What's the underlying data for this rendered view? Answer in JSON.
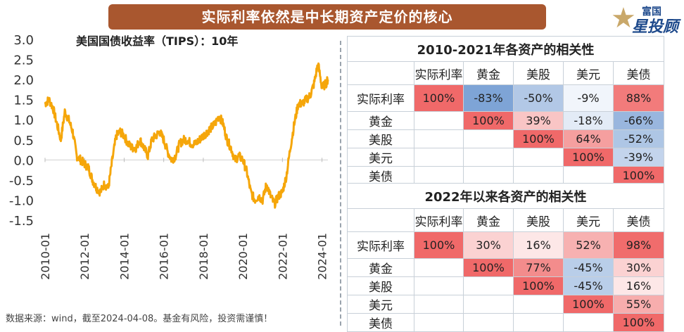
{
  "banner": {
    "title": "实际利率依然是中长期资产定价的核心"
  },
  "logo": {
    "line1": "富国",
    "line2": "星投顾",
    "icon": "star-icon"
  },
  "footnote": "数据来源：wind，截至2024-04-08。基金有风险，投资需谨慎！",
  "chart_data": {
    "type": "line",
    "title": "美国国债收益率（TIPS）：10年",
    "color": "#f5a60a",
    "ylim": [
      -1.5,
      3.0
    ],
    "yticks": [
      "3.0",
      "2.5",
      "2.0",
      "1.5",
      "1.0",
      "0.5",
      "0.0",
      "-0.5",
      "-1.0",
      "-1.5"
    ],
    "xticks": [
      "2010-01",
      "2012-01",
      "2014-01",
      "2016-01",
      "2018-01",
      "2020-01",
      "2022-01",
      "2024-01"
    ],
    "xlim": [
      2010.0,
      2024.3
    ],
    "series": [
      {
        "name": "10Y TIPS",
        "x": [
          2010.0,
          2010.2,
          2010.4,
          2010.6,
          2010.8,
          2011.0,
          2011.2,
          2011.4,
          2011.6,
          2011.8,
          2012.0,
          2012.2,
          2012.4,
          2012.6,
          2012.8,
          2013.0,
          2013.2,
          2013.4,
          2013.6,
          2013.8,
          2014.0,
          2014.2,
          2014.4,
          2014.6,
          2014.8,
          2015.0,
          2015.2,
          2015.4,
          2015.6,
          2015.8,
          2016.0,
          2016.2,
          2016.4,
          2016.6,
          2016.8,
          2017.0,
          2017.2,
          2017.4,
          2017.6,
          2017.8,
          2018.0,
          2018.2,
          2018.4,
          2018.6,
          2018.8,
          2019.0,
          2019.2,
          2019.4,
          2019.6,
          2019.8,
          2020.0,
          2020.2,
          2020.4,
          2020.6,
          2020.8,
          2021.0,
          2021.2,
          2021.4,
          2021.6,
          2021.8,
          2022.0,
          2022.2,
          2022.4,
          2022.6,
          2022.8,
          2023.0,
          2023.2,
          2023.4,
          2023.6,
          2023.8,
          2024.0,
          2024.2,
          2024.3
        ],
        "y": [
          1.4,
          1.5,
          1.3,
          0.9,
          0.5,
          1.2,
          1.0,
          0.7,
          0.1,
          0.0,
          -0.1,
          -0.2,
          -0.5,
          -0.7,
          -0.8,
          -0.6,
          -0.7,
          0.0,
          0.6,
          0.7,
          0.6,
          0.4,
          0.3,
          0.3,
          0.5,
          0.3,
          0.1,
          0.5,
          0.6,
          0.7,
          0.5,
          0.2,
          0.0,
          0.1,
          0.4,
          0.5,
          0.5,
          0.4,
          0.4,
          0.5,
          0.6,
          0.7,
          0.8,
          0.9,
          1.1,
          0.9,
          0.5,
          0.3,
          0.0,
          0.1,
          0.0,
          -0.3,
          -0.8,
          -1.0,
          -0.9,
          -1.0,
          -0.6,
          -0.9,
          -1.1,
          -0.9,
          -0.8,
          -0.4,
          0.3,
          0.9,
          1.4,
          1.4,
          1.5,
          1.6,
          1.9,
          2.4,
          1.8,
          1.9,
          2.0
        ]
      }
    ]
  },
  "tables": [
    {
      "title": "2010-2021年各资产的相关性",
      "columns": [
        "实际利率",
        "黄金",
        "美股",
        "美元",
        "美债"
      ],
      "rows": [
        {
          "label": "实际利率",
          "cells": [
            "100%",
            "-83%",
            "-50%",
            "-9%",
            "88%"
          ]
        },
        {
          "label": "黄金",
          "cells": [
            "",
            "100%",
            "39%",
            "-18%",
            "-66%"
          ]
        },
        {
          "label": "美股",
          "cells": [
            "",
            "",
            "100%",
            "64%",
            "-52%"
          ]
        },
        {
          "label": "美元",
          "cells": [
            "",
            "",
            "",
            "100%",
            "-39%"
          ]
        },
        {
          "label": "美债",
          "cells": [
            "",
            "",
            "",
            "",
            "100%"
          ]
        }
      ]
    },
    {
      "title": "2022年以来各资产的相关性",
      "columns": [
        "实际利率",
        "黄金",
        "美股",
        "美元",
        "美债"
      ],
      "rows": [
        {
          "label": "实际利率",
          "cells": [
            "100%",
            "30%",
            "16%",
            "52%",
            "98%"
          ]
        },
        {
          "label": "黄金",
          "cells": [
            "",
            "100%",
            "77%",
            "-45%",
            "30%"
          ]
        },
        {
          "label": "美股",
          "cells": [
            "",
            "",
            "100%",
            "-45%",
            "16%"
          ]
        },
        {
          "label": "美元",
          "cells": [
            "",
            "",
            "",
            "100%",
            "55%"
          ]
        },
        {
          "label": "美债",
          "cells": [
            "",
            "",
            "",
            "",
            "100%"
          ]
        }
      ]
    }
  ]
}
